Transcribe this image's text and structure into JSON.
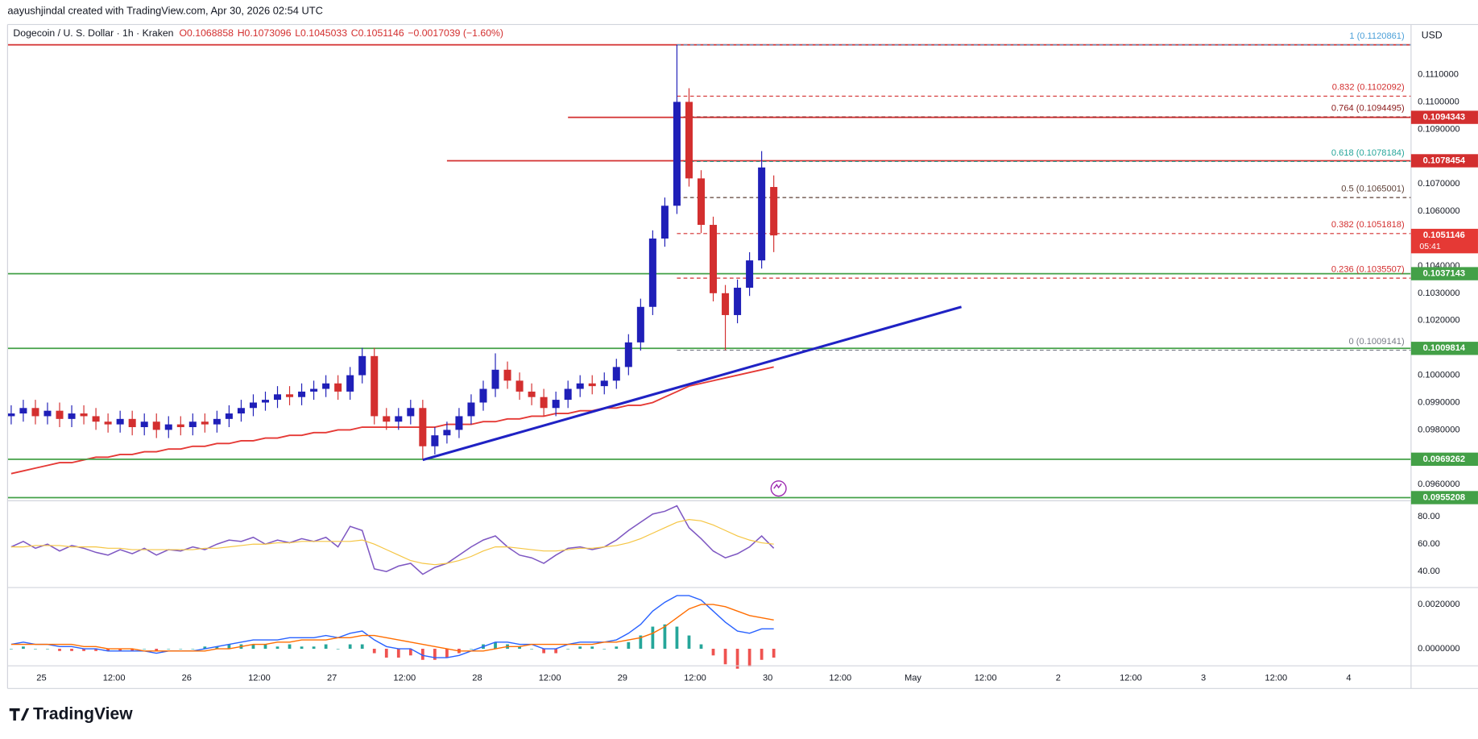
{
  "header": {
    "attribution": "aayushjindal created with TradingView.com, Apr 30, 2026 02:54 UTC",
    "symbol": "Dogecoin / U. S. Dollar · 1h · Kraken",
    "ohlc": [
      "O0.1068858",
      "H0.1073096",
      "L0.1045033",
      "C0.1051146",
      "−0.0017039 (−1.60%)"
    ],
    "currency": "USD"
  },
  "brand": "TradingView",
  "chart_data": [
    {
      "type": "candlestick",
      "x": [
        -5,
        -3,
        -1,
        1,
        3,
        5,
        7,
        9,
        11,
        13,
        15,
        17,
        19,
        21,
        23,
        25,
        27,
        29,
        31,
        33,
        35,
        37,
        39,
        41,
        43,
        45,
        47,
        49,
        51,
        53,
        55,
        57,
        59,
        61,
        63,
        65,
        67,
        69,
        71,
        73,
        75,
        77,
        79,
        81,
        83,
        85,
        87,
        89,
        91,
        93,
        95,
        97,
        99,
        101,
        103,
        105,
        107,
        109,
        111,
        113,
        115,
        117,
        119,
        121
      ],
      "open": [
        0.0985,
        0.0986,
        0.0988,
        0.0985,
        0.0987,
        0.0984,
        0.0986,
        0.0985,
        0.0983,
        0.0982,
        0.0984,
        0.0981,
        0.0983,
        0.098,
        0.0982,
        0.0981,
        0.0983,
        0.0982,
        0.0984,
        0.0986,
        0.0988,
        0.099,
        0.0991,
        0.0993,
        0.0992,
        0.0994,
        0.0995,
        0.0997,
        0.0994,
        0.1,
        0.1007,
        0.0985,
        0.0983,
        0.0985,
        0.0988,
        0.0974,
        0.0978,
        0.098,
        0.0985,
        0.099,
        0.0995,
        0.1002,
        0.0998,
        0.0994,
        0.0992,
        0.0988,
        0.0991,
        0.0995,
        0.0997,
        0.0996,
        0.0998,
        0.1003,
        0.1012,
        0.1025,
        0.105,
        0.1062,
        0.11,
        0.1072,
        0.1055,
        0.103,
        0.1022,
        0.1032,
        0.1042,
        0.1068858
      ],
      "high": [
        0.0989,
        0.0991,
        0.0991,
        0.099,
        0.099,
        0.0989,
        0.0989,
        0.0988,
        0.0986,
        0.0987,
        0.0987,
        0.0986,
        0.0986,
        0.0985,
        0.0985,
        0.0986,
        0.0986,
        0.0987,
        0.0989,
        0.0991,
        0.0993,
        0.0994,
        0.0996,
        0.0996,
        0.0997,
        0.0998,
        0.1,
        0.1,
        0.1003,
        0.101,
        0.101,
        0.0988,
        0.0988,
        0.0991,
        0.0991,
        0.0981,
        0.0983,
        0.0988,
        0.0993,
        0.0998,
        0.1008,
        0.1005,
        0.1001,
        0.0997,
        0.0995,
        0.0994,
        0.0998,
        0.1,
        0.1,
        0.1001,
        0.1006,
        0.1015,
        0.1028,
        0.1053,
        0.1065,
        0.1120861,
        0.1105,
        0.1075,
        0.1058,
        0.1033,
        0.1035,
        0.1045,
        0.1082,
        0.1073096
      ],
      "low": [
        0.0982,
        0.0983,
        0.0982,
        0.0982,
        0.0981,
        0.0981,
        0.0982,
        0.098,
        0.0979,
        0.0979,
        0.0978,
        0.0978,
        0.0977,
        0.0977,
        0.0978,
        0.0978,
        0.0979,
        0.0979,
        0.0981,
        0.0983,
        0.0985,
        0.0987,
        0.0988,
        0.0989,
        0.0989,
        0.0991,
        0.0992,
        0.0991,
        0.0991,
        0.0997,
        0.0982,
        0.098,
        0.098,
        0.0982,
        0.0969,
        0.0971,
        0.0975,
        0.0977,
        0.0982,
        0.0987,
        0.0992,
        0.0995,
        0.0991,
        0.0989,
        0.0985,
        0.0985,
        0.0988,
        0.0992,
        0.0993,
        0.0993,
        0.0995,
        0.1,
        0.1009,
        0.1022,
        0.1047,
        0.1059,
        0.1069,
        0.1052,
        0.1027,
        0.1009141,
        0.1019,
        0.1029,
        0.1039,
        0.1045033
      ],
      "close": [
        0.0986,
        0.0988,
        0.0985,
        0.0987,
        0.0984,
        0.0986,
        0.0985,
        0.0983,
        0.0982,
        0.0984,
        0.0981,
        0.0983,
        0.098,
        0.0982,
        0.0981,
        0.0983,
        0.0982,
        0.0984,
        0.0986,
        0.0988,
        0.099,
        0.0991,
        0.0993,
        0.0992,
        0.0994,
        0.0995,
        0.0997,
        0.0994,
        0.1,
        0.1007,
        0.0985,
        0.0983,
        0.0985,
        0.0988,
        0.0974,
        0.0978,
        0.098,
        0.0985,
        0.099,
        0.0995,
        0.1002,
        0.0998,
        0.0994,
        0.0992,
        0.0988,
        0.0991,
        0.0995,
        0.0997,
        0.0996,
        0.0998,
        0.1003,
        0.1012,
        0.1025,
        0.105,
        0.1062,
        0.11,
        0.1072,
        0.1055,
        0.103,
        0.1022,
        0.1032,
        0.1042,
        0.1076,
        0.1051146
      ],
      "up_color": "#1f1fb8",
      "down_color": "#d32f2f",
      "moving_average": {
        "color": "#e53935",
        "values": [
          0.0964,
          0.0965,
          0.0966,
          0.0967,
          0.0968,
          0.0968,
          0.0969,
          0.097,
          0.097,
          0.0971,
          0.0971,
          0.0972,
          0.0972,
          0.0973,
          0.0973,
          0.0974,
          0.0974,
          0.0975,
          0.0975,
          0.0976,
          0.0976,
          0.0977,
          0.0977,
          0.0978,
          0.0978,
          0.0979,
          0.0979,
          0.098,
          0.098,
          0.0981,
          0.0981,
          0.0981,
          0.0981,
          0.0981,
          0.0981,
          0.0981,
          0.0982,
          0.0982,
          0.0982,
          0.0983,
          0.0983,
          0.0984,
          0.0984,
          0.0985,
          0.0985,
          0.0986,
          0.0986,
          0.0987,
          0.0987,
          0.0988,
          0.0988,
          0.0989,
          0.0989,
          0.099,
          0.0992,
          0.0994,
          0.0996,
          0.0997,
          0.0998,
          0.0999,
          0.1,
          0.1001,
          0.1002,
          0.1003
        ]
      },
      "trendline": {
        "color": "#1f22c4",
        "x": [
          63,
          152
        ],
        "y": [
          0.0969,
          0.1025
        ]
      },
      "levels": [
        {
          "value": 0.1120861,
          "color": "#d32f2f",
          "badge": false
        },
        {
          "value": 0.1094343,
          "color": "#d32f2f",
          "start": 87,
          "badge": true
        },
        {
          "value": 0.1078454,
          "color": "#d32f2f",
          "start": 67,
          "badge": true
        },
        {
          "value": 0.1037143,
          "color": "#43a047",
          "badge": true
        },
        {
          "value": 0.1009814,
          "color": "#43a047",
          "badge": true
        },
        {
          "value": 0.0969262,
          "color": "#43a047",
          "badge": true
        },
        {
          "value": 0.0955208,
          "color": "#43a047",
          "badge": true
        }
      ],
      "fib_start": 105,
      "fib_levels": [
        {
          "label": "1 (0.1120861)",
          "value": 0.1120861,
          "color": "#4a9fd8"
        },
        {
          "label": "0.832 (0.1102092)",
          "value": 0.1102092,
          "color": "#d32f2f"
        },
        {
          "label": "0.764 (0.1094495)",
          "value": 0.1094495,
          "color": "#8b1a1a"
        },
        {
          "label": "0.618 (0.1078184)",
          "value": 0.1078184,
          "color": "#26a69a"
        },
        {
          "label": "0.5 (0.1065001)",
          "value": 0.1065001,
          "color": "#5d4037"
        },
        {
          "label": "0.382 (0.1051818)",
          "value": 0.1051818,
          "color": "#d32f2f"
        },
        {
          "label": "0.236 (0.1035507)",
          "value": 0.1035507,
          "color": "#d32f2f"
        },
        {
          "label": "0 (0.1009141)",
          "value": 0.1009141,
          "color": "#787b86"
        }
      ],
      "last_price": {
        "value": 0.1051146,
        "countdown": "05:41",
        "color": "#e53935"
      },
      "xlim": [
        -5.6,
        226.3
      ],
      "xticks": [
        {
          "value": 0,
          "label": "25"
        },
        {
          "value": 12,
          "label": "12:00"
        },
        {
          "value": 24,
          "label": "26"
        },
        {
          "value": 36,
          "label": "12:00"
        },
        {
          "value": 48,
          "label": "27"
        },
        {
          "value": 60,
          "label": "12:00"
        },
        {
          "value": 72,
          "label": "28"
        },
        {
          "value": 84,
          "label": "12:00"
        },
        {
          "value": 96,
          "label": "29"
        },
        {
          "value": 108,
          "label": "12:00"
        },
        {
          "value": 120,
          "label": "30"
        },
        {
          "value": 132,
          "label": "12:00"
        },
        {
          "value": 144,
          "label": "May"
        },
        {
          "value": 156,
          "label": "12:00"
        },
        {
          "value": 168,
          "label": "2"
        },
        {
          "value": 180,
          "label": "12:00"
        },
        {
          "value": 192,
          "label": "3"
        },
        {
          "value": 204,
          "label": "12:00"
        },
        {
          "value": 216,
          "label": "4"
        }
      ],
      "ylim": [
        0.09544,
        0.11283
      ],
      "yticks": [
        {
          "value": 0.111,
          "label": "0.1110000"
        },
        {
          "value": 0.11,
          "label": "0.1100000"
        },
        {
          "value": 0.109,
          "label": "0.1090000"
        },
        {
          "value": 0.107,
          "label": "0.1070000"
        },
        {
          "value": 0.106,
          "label": "0.1060000"
        },
        {
          "value": 0.104,
          "label": "0.1040000"
        },
        {
          "value": 0.103,
          "label": "0.1030000"
        },
        {
          "value": 0.102,
          "label": "0.1020000"
        },
        {
          "value": 0.1,
          "label": "0.1000000"
        },
        {
          "value": 0.099,
          "label": "0.0990000"
        },
        {
          "value": 0.098,
          "label": "0.0980000"
        },
        {
          "value": 0.096,
          "label": "0.0960000"
        }
      ],
      "grid": true
    },
    {
      "type": "line",
      "x": [
        -5,
        -3,
        -1,
        1,
        3,
        5,
        7,
        9,
        11,
        13,
        15,
        17,
        19,
        21,
        23,
        25,
        27,
        29,
        31,
        33,
        35,
        37,
        39,
        41,
        43,
        45,
        47,
        49,
        51,
        53,
        55,
        57,
        59,
        61,
        63,
        65,
        67,
        69,
        71,
        73,
        75,
        77,
        79,
        81,
        83,
        85,
        87,
        89,
        91,
        93,
        95,
        97,
        99,
        101,
        103,
        105,
        107,
        109,
        111,
        113,
        115,
        117,
        119,
        121
      ],
      "series": [
        {
          "color": "#7e57c2",
          "values": [
            58,
            62,
            57,
            60,
            55,
            59,
            57,
            54,
            52,
            56,
            53,
            57,
            52,
            56,
            55,
            58,
            56,
            60,
            63,
            62,
            65,
            60,
            63,
            61,
            64,
            62,
            65,
            58,
            73,
            70,
            42,
            40,
            44,
            46,
            38,
            43,
            46,
            52,
            58,
            63,
            66,
            58,
            52,
            50,
            46,
            52,
            57,
            58,
            56,
            58,
            63,
            70,
            76,
            82,
            84,
            88,
            72,
            64,
            55,
            50,
            53,
            58,
            66,
            57
          ]
        },
        {
          "color": "#f5c542",
          "values": [
            58,
            58,
            59,
            59,
            59,
            58,
            58,
            58,
            57,
            57,
            56,
            56,
            56,
            56,
            56,
            56,
            57,
            57,
            58,
            59,
            60,
            60,
            61,
            61,
            62,
            62,
            62,
            62,
            62,
            63,
            60,
            56,
            52,
            48,
            46,
            45,
            46,
            48,
            51,
            55,
            58,
            58,
            57,
            56,
            55,
            55,
            56,
            57,
            57,
            58,
            59,
            61,
            64,
            68,
            72,
            76,
            78,
            77,
            74,
            70,
            66,
            63,
            61,
            60
          ]
        }
      ],
      "band": [
        30,
        70
      ],
      "band_color": "#7e57c2",
      "ylim": [
        29,
        91
      ],
      "yticks": [
        {
          "value": 80,
          "label": "80.00"
        },
        {
          "value": 60,
          "label": "60.00"
        },
        {
          "value": 40,
          "label": "40.00"
        }
      ]
    },
    {
      "type": "macd",
      "x": [
        -5,
        -3,
        -1,
        1,
        3,
        5,
        7,
        9,
        11,
        13,
        15,
        17,
        19,
        21,
        23,
        25,
        27,
        29,
        31,
        33,
        35,
        37,
        39,
        41,
        43,
        45,
        47,
        49,
        51,
        53,
        55,
        57,
        59,
        61,
        63,
        65,
        67,
        69,
        71,
        73,
        75,
        77,
        79,
        81,
        83,
        85,
        87,
        89,
        91,
        93,
        95,
        97,
        99,
        101,
        103,
        105,
        107,
        109,
        111,
        113,
        115,
        117,
        119,
        121
      ],
      "series": [
        {
          "color": "#2962ff",
          "values": [
            0.0002,
            0.0003,
            0.0002,
            0.0002,
            0.0001,
            0.0001,
            0,
            0,
            -0.0001,
            -0.0001,
            -0.0001,
            -0.0001,
            -0.0002,
            -0.0001,
            -0.0001,
            -0.0001,
            0,
            0.0001,
            0.0002,
            0.0003,
            0.0004,
            0.0004,
            0.0004,
            0.0005,
            0.0005,
            0.0005,
            0.0006,
            0.0005,
            0.0007,
            0.0008,
            0.0004,
            0.0001,
            0,
            0,
            -0.0003,
            -0.0004,
            -0.0004,
            -0.0003,
            -0.0001,
            0.0001,
            0.0003,
            0.0003,
            0.0002,
            0.0002,
            0,
            0,
            0.0002,
            0.0003,
            0.0003,
            0.0003,
            0.0004,
            0.0007,
            0.0011,
            0.0017,
            0.0021,
            0.0024,
            0.0024,
            0.0022,
            0.0017,
            0.0012,
            0.0008,
            0.0007,
            0.0009,
            0.0009
          ]
        },
        {
          "color": "#ff6d00",
          "values": [
            0.0002,
            0.0002,
            0.0002,
            0.0002,
            0.0002,
            0.0002,
            0.0001,
            0.0001,
            0,
            0,
            0,
            -0.0001,
            -0.0001,
            -0.0001,
            -0.0001,
            -0.0001,
            -0.0001,
            0,
            0,
            0.0001,
            0.0002,
            0.0002,
            0.0003,
            0.0003,
            0.0004,
            0.0004,
            0.0004,
            0.0005,
            0.0005,
            0.0006,
            0.0006,
            0.0005,
            0.0004,
            0.0003,
            0.0002,
            0.0001,
            0,
            -0.0001,
            -0.0001,
            -0.0001,
            0,
            0.0001,
            0.0001,
            0.0002,
            0.0002,
            0.0002,
            0.0002,
            0.0002,
            0.0002,
            0.0003,
            0.0003,
            0.0004,
            0.0005,
            0.0007,
            0.001,
            0.0014,
            0.0018,
            0.002,
            0.002,
            0.0019,
            0.0017,
            0.0015,
            0.0014,
            0.0013
          ]
        }
      ],
      "histogram": {
        "up_color": "#26a69a",
        "down_color": "#ef5350",
        "values": [
          0,
          0.0001,
          0,
          0,
          -0.0001,
          -0.0001,
          -0.0001,
          -0.0001,
          -0.0001,
          -0.0001,
          -0.0001,
          0,
          -0.0001,
          0,
          0,
          0,
          0.0001,
          0.0001,
          0.0002,
          0.0002,
          0.0002,
          0.0002,
          0.0001,
          0.0002,
          0.0001,
          0.0001,
          0.0002,
          0,
          0.0002,
          0.0002,
          -0.0002,
          -0.0004,
          -0.0004,
          -0.0003,
          -0.0005,
          -0.0005,
          -0.0004,
          -0.0002,
          0,
          0.0002,
          0.0003,
          0.0002,
          0.0001,
          0,
          -0.0002,
          -0.0002,
          0,
          0.0001,
          0.0001,
          0,
          0.0001,
          0.0003,
          0.0006,
          0.001,
          0.0011,
          0.001,
          0.0006,
          0.0002,
          -0.0003,
          -0.0007,
          -0.0009,
          -0.0008,
          -0.0005,
          -0.0004
        ]
      },
      "ylim": [
        -0.00077,
        0.00268
      ],
      "yticks": [
        {
          "value": 0.002,
          "label": "0.0020000"
        },
        {
          "value": 0,
          "label": "0.0000000"
        }
      ]
    }
  ]
}
